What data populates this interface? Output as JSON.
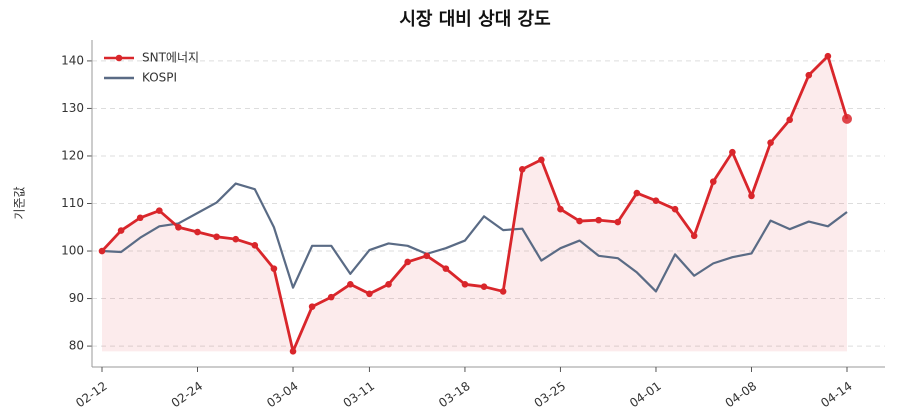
{
  "chart_data": {
    "type": "line",
    "title": "시장 대비 상대 강도",
    "ylabel": "기준값",
    "categories": [
      "02-12",
      null,
      null,
      null,
      null,
      "02-24",
      null,
      null,
      null,
      null,
      "03-04",
      null,
      null,
      null,
      "03-11",
      null,
      null,
      null,
      null,
      "03-18",
      null,
      null,
      null,
      null,
      "03-25",
      null,
      null,
      null,
      null,
      "04-01",
      null,
      null,
      null,
      null,
      "04-08",
      null,
      null,
      null,
      null,
      "04-14"
    ],
    "series": [
      {
        "name": "SNT에너지",
        "color": "#d9262b",
        "markers": true,
        "fill": true,
        "values": [
          100,
          104.3,
          107,
          108.5,
          105,
          104,
          103,
          102.5,
          101.2,
          96.3,
          78.9,
          88.3,
          90.3,
          93,
          91,
          93,
          97.7,
          99,
          96.3,
          93,
          92.5,
          91.5,
          117.2,
          119.2,
          108.8,
          106.3,
          106.5,
          106.1,
          112.2,
          110.6,
          108.8,
          103.2,
          114.6,
          120.8,
          111.6,
          122.8,
          127.6,
          137,
          141,
          127.8
        ]
      },
      {
        "name": "KOSPI",
        "color": "#5a6b85",
        "markers": false,
        "fill": false,
        "values": [
          100,
          99.8,
          102.8,
          105.2,
          105.8,
          108,
          110.2,
          114.2,
          113,
          105,
          92.3,
          101.1,
          101.1,
          95.2,
          100.2,
          101.6,
          101.1,
          99.4,
          100.6,
          102.2,
          107.3,
          104.4,
          104.7,
          98,
          100.6,
          102.2,
          99,
          98.5,
          95.5,
          91.5,
          99.3,
          94.8,
          97.4,
          98.7,
          99.5,
          106.4,
          104.6,
          106.2,
          105.2,
          108.2
        ]
      }
    ],
    "ylim": [
      75.6,
      144.4
    ],
    "yticks": [
      80,
      90,
      100,
      110,
      120,
      130,
      140
    ],
    "grid": true,
    "legend": "upper-left"
  }
}
